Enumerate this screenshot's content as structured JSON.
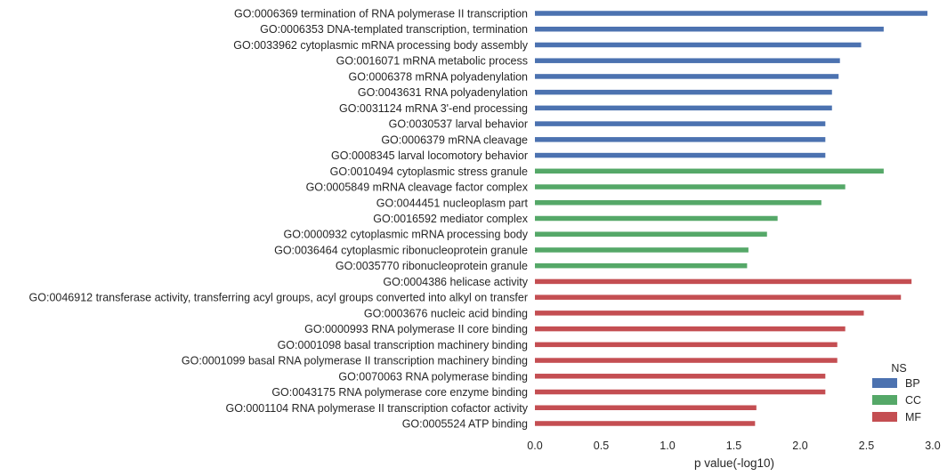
{
  "chart_data": {
    "type": "bar",
    "orientation": "horizontal",
    "xlabel": "p value(-log10)",
    "xlim": [
      0,
      3.0
    ],
    "xticks": [
      "0.0",
      "0.5",
      "1.0",
      "1.5",
      "2.0",
      "2.5",
      "3.0"
    ],
    "grid": false,
    "legend": {
      "title": "NS",
      "placement": "lower-right",
      "entries": [
        "BP",
        "CC",
        "MF"
      ]
    },
    "colors": {
      "BP": "#4c72b0",
      "CC": "#55a868",
      "MF": "#c44e52"
    },
    "categories": [
      "GO:0006369 termination of RNA polymerase II transcription",
      "GO:0006353 DNA-templated transcription, termination",
      "GO:0033962 cytoplasmic mRNA processing body assembly",
      "GO:0016071 mRNA metabolic process",
      "GO:0006378 mRNA polyadenylation",
      "GO:0043631 RNA polyadenylation",
      "GO:0031124 mRNA 3'-end processing",
      "GO:0030537 larval behavior",
      "GO:0006379 mRNA cleavage",
      "GO:0008345 larval locomotory behavior",
      "GO:0010494 cytoplasmic stress granule",
      "GO:0005849 mRNA cleavage factor complex",
      "GO:0044451 nucleoplasm part",
      "GO:0016592 mediator complex",
      "GO:0000932 cytoplasmic mRNA processing body",
      "GO:0036464 cytoplasmic ribonucleoprotein granule",
      "GO:0035770 ribonucleoprotein granule",
      "GO:0004386 helicase activity",
      "GO:0046912 transferase activity, transferring acyl groups, acyl groups converted into alkyl on transfer",
      "GO:0003676 nucleic acid binding",
      "GO:0000993 RNA polymerase II core binding",
      "GO:0001098 basal transcription machinery binding",
      "GO:0001099 basal RNA polymerase II transcription machinery binding",
      "GO:0070063 RNA polymerase binding",
      "GO:0043175 RNA polymerase core enzyme binding",
      "GO:0001104 RNA polymerase II transcription cofactor activity",
      "GO:0005524 ATP binding"
    ],
    "values": [
      2.96,
      2.63,
      2.46,
      2.3,
      2.29,
      2.24,
      2.24,
      2.19,
      2.19,
      2.19,
      2.63,
      2.34,
      2.16,
      1.83,
      1.75,
      1.61,
      1.6,
      2.84,
      2.76,
      2.48,
      2.34,
      2.28,
      2.28,
      2.19,
      2.19,
      1.67,
      1.66
    ],
    "groups": [
      "BP",
      "BP",
      "BP",
      "BP",
      "BP",
      "BP",
      "BP",
      "BP",
      "BP",
      "BP",
      "CC",
      "CC",
      "CC",
      "CC",
      "CC",
      "CC",
      "CC",
      "MF",
      "MF",
      "MF",
      "MF",
      "MF",
      "MF",
      "MF",
      "MF",
      "MF",
      "MF"
    ]
  }
}
